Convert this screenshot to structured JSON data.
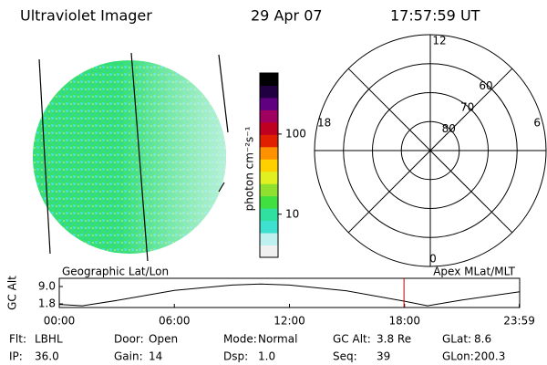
{
  "header": {
    "title": "Ultraviolet Imager",
    "date": "29 Apr 07",
    "time": "17:57:59 UT"
  },
  "colorbar": {
    "label": "photon cm⁻²s⁻¹",
    "scale": "log",
    "lim": [
      2.9,
      577
    ],
    "ticks": [
      10,
      100
    ],
    "colors": [
      "#f0f0f0",
      "#bff0f0",
      "#40e0d0",
      "#30e0a0",
      "#40e040",
      "#90e030",
      "#e0f020",
      "#ffd000",
      "#ff9000",
      "#e02000",
      "#c00020",
      "#a00060",
      "#600080",
      "#200040",
      "#000000"
    ]
  },
  "polar": {
    "hour_labels": [
      "12",
      "18",
      "6",
      "0"
    ],
    "lat_lim": [
      90,
      50
    ],
    "lat_rings": [
      80,
      70,
      60
    ]
  },
  "orbit": {
    "ylabel": "GC Alt",
    "left_label": "Geographic Lat/Lon",
    "right_label": "Apex MLat/MLT",
    "ylim": [
      0.3,
      12.4
    ],
    "yticks": [
      {
        "value": 9,
        "label": "9.0"
      },
      1.8
    ],
    "xlim": [
      0,
      24
    ],
    "xticks": [
      {
        "value": 0,
        "label": "00:00"
      },
      {
        "value": 6,
        "label": "06:00"
      },
      {
        "value": 12,
        "label": "12:00"
      },
      {
        "value": 18,
        "label": "18:00"
      },
      {
        "value": 23.98,
        "label": "23:59"
      }
    ],
    "x": [
      0,
      1.2,
      3,
      6,
      9,
      10.5,
      12,
      15,
      18,
      19.2,
      21,
      24
    ],
    "values": [
      1.6,
      1.0,
      3.2,
      7.4,
      9.6,
      10,
      9.6,
      7.2,
      2.9,
      1.0,
      3.4,
      6.8
    ],
    "marker_time": 17.97,
    "marker_color": "#c00000"
  },
  "info": [
    [
      {
        "label": "Flt:",
        "value": "LBHL"
      },
      {
        "label": "Door:",
        "value": "Open"
      },
      {
        "label": "Mode:",
        "value": "Normal"
      },
      {
        "label": "GC Alt:",
        "value": "3.8 Re"
      },
      {
        "label": "GLat:",
        "value": "8.6"
      }
    ],
    [
      {
        "label": "IP:",
        "value": "36.0"
      },
      {
        "label": "Gain:",
        "value": "14"
      },
      {
        "label": "Dsp:",
        "value": "1.0"
      },
      {
        "label": "Seq:",
        "value": "39"
      },
      {
        "label": "GLon:",
        "value": "200.3"
      }
    ]
  ]
}
